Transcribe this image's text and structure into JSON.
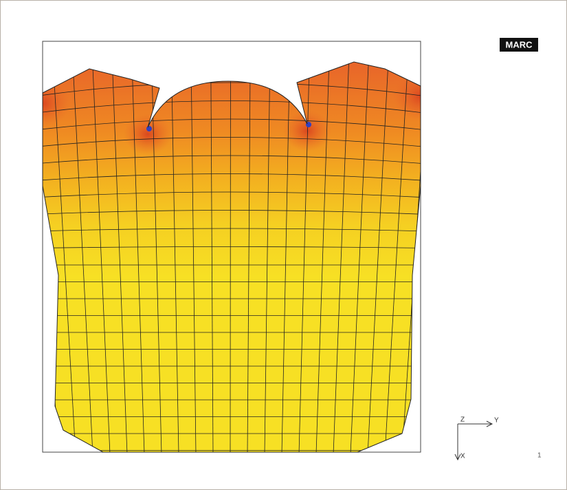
{
  "logo": "MARC",
  "axes": {
    "z": "Z",
    "y": "Y",
    "x": "X"
  },
  "frame_number": "1"
}
